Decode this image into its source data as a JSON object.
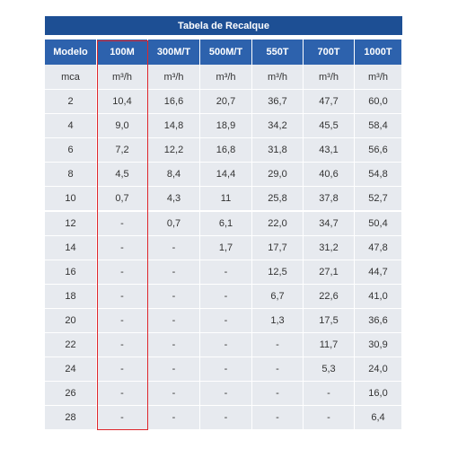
{
  "table": {
    "title": "Tabela de Recalque",
    "header": [
      "Modelo",
      "100M",
      "300M/T",
      "500M/T",
      "550T",
      "700T",
      "1000T"
    ],
    "units": [
      "mca",
      "m³/h",
      "m³/h",
      "m³/h",
      "m³/h",
      "m³/h",
      "m³/h"
    ],
    "rows": [
      [
        "2",
        "10,4",
        "16,6",
        "20,7",
        "36,7",
        "47,7",
        "60,0"
      ],
      [
        "4",
        "9,0",
        "14,8",
        "18,9",
        "34,2",
        "45,5",
        "58,4"
      ],
      [
        "6",
        "7,2",
        "12,2",
        "16,8",
        "31,8",
        "43,1",
        "56,6"
      ],
      [
        "8",
        "4,5",
        "8,4",
        "14,4",
        "29,0",
        "40,6",
        "54,8"
      ],
      [
        "10",
        "0,7",
        "4,3",
        "11",
        "25,8",
        "37,8",
        "52,7"
      ],
      [
        "12",
        "-",
        "0,7",
        "6,1",
        "22,0",
        "34,7",
        "50,4"
      ],
      [
        "14",
        "-",
        "-",
        "1,7",
        "17,7",
        "31,2",
        "47,8"
      ],
      [
        "16",
        "-",
        "-",
        "-",
        "12,5",
        "27,1",
        "44,7"
      ],
      [
        "18",
        "-",
        "-",
        "-",
        "6,7",
        "22,6",
        "41,0"
      ],
      [
        "20",
        "-",
        "-",
        "-",
        "1,3",
        "17,5",
        "36,6"
      ],
      [
        "22",
        "-",
        "-",
        "-",
        "-",
        "11,7",
        "30,9"
      ],
      [
        "24",
        "-",
        "-",
        "-",
        "-",
        "5,3",
        "24,0"
      ],
      [
        "26",
        "-",
        "-",
        "-",
        "-",
        "-",
        "16,0"
      ],
      [
        "28",
        "-",
        "-",
        "-",
        "-",
        "-",
        "6,4"
      ]
    ]
  }
}
